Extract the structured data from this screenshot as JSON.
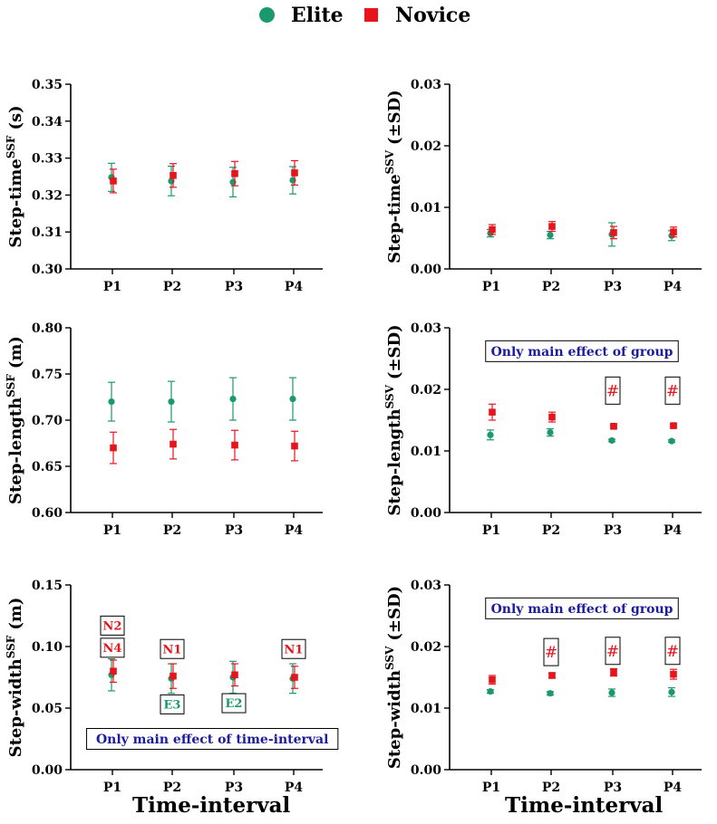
{
  "legend": {
    "elite_label": "Elite",
    "novice_label": "Novice",
    "elite_color": "#1a9a6c",
    "novice_color": "#e8141b"
  },
  "x_axis_title": "Time-interval",
  "chart_data": [
    {
      "type": "scatter",
      "ylabel_main": "Step-time",
      "ylabel_sup": "SSF",
      "ylabel_unit": "(s)",
      "categories": [
        "P1",
        "P2",
        "P3",
        "P4"
      ],
      "ylim": [
        0.3,
        0.35
      ],
      "yticks": [
        "0.30",
        "0.31",
        "0.32",
        "0.33",
        "0.34",
        "0.35"
      ],
      "series": [
        {
          "name": "Elite",
          "values": [
            0.3248,
            0.3238,
            0.3235,
            0.324
          ],
          "errors": [
            0.0038,
            0.004,
            0.004,
            0.0037
          ]
        },
        {
          "name": "Novice",
          "values": [
            0.3238,
            0.3253,
            0.3258,
            0.326
          ],
          "errors": [
            0.0032,
            0.0032,
            0.0033,
            0.0033
          ]
        }
      ],
      "annotations": []
    },
    {
      "type": "scatter",
      "ylabel_main": "Step-time",
      "ylabel_sup": "SSV",
      "ylabel_unit": "(±SD)",
      "categories": [
        "P1",
        "P2",
        "P3",
        "P4"
      ],
      "ylim": [
        0.0,
        0.03
      ],
      "yticks": [
        "0.00",
        "0.01",
        "0.02",
        "0.03"
      ],
      "series": [
        {
          "name": "Elite",
          "values": [
            0.0058,
            0.0055,
            0.0056,
            0.0054
          ],
          "errors": [
            0.0006,
            0.0006,
            0.0019,
            0.0008
          ]
        },
        {
          "name": "Novice",
          "values": [
            0.0064,
            0.0069,
            0.0059,
            0.006
          ],
          "errors": [
            0.0008,
            0.0008,
            0.001,
            0.0008
          ]
        }
      ],
      "annotations": []
    },
    {
      "type": "scatter",
      "ylabel_main": "Step-length",
      "ylabel_sup": "SSF",
      "ylabel_unit": "(m)",
      "categories": [
        "P1",
        "P2",
        "P3",
        "P4"
      ],
      "ylim": [
        0.6,
        0.8
      ],
      "yticks": [
        "0.60",
        "0.65",
        "0.70",
        "0.75",
        "0.80"
      ],
      "series": [
        {
          "name": "Elite",
          "values": [
            0.72,
            0.72,
            0.723,
            0.723
          ],
          "errors": [
            0.021,
            0.022,
            0.023,
            0.023
          ]
        },
        {
          "name": "Novice",
          "values": [
            0.67,
            0.674,
            0.673,
            0.672
          ],
          "errors": [
            0.017,
            0.016,
            0.016,
            0.016
          ]
        }
      ],
      "annotations": []
    },
    {
      "type": "scatter",
      "ylabel_main": "Step-length",
      "ylabel_sup": "SSV",
      "ylabel_unit": "(±SD)",
      "categories": [
        "P1",
        "P2",
        "P3",
        "P4"
      ],
      "ylim": [
        0.0,
        0.03
      ],
      "yticks": [
        "0.00",
        "0.01",
        "0.02",
        "0.03"
      ],
      "series": [
        {
          "name": "Elite",
          "values": [
            0.0126,
            0.013,
            0.0117,
            0.0116
          ],
          "errors": [
            0.0008,
            0.0006,
            0.0002,
            0.0002
          ]
        },
        {
          "name": "Novice",
          "values": [
            0.0163,
            0.0155,
            0.014,
            0.0141
          ],
          "errors": [
            0.0013,
            0.0008,
            0.0002,
            0.0002
          ]
        }
      ],
      "annotations": [
        {
          "text": "Only main effect of group",
          "color": "#1c1c9c",
          "kind": "wide",
          "cat": 1.5,
          "value": 0.0262
        },
        {
          "text": "#",
          "color": "#e8141b",
          "kind": "hash",
          "cat": 2,
          "value": 0.0198
        },
        {
          "text": "#",
          "color": "#e8141b",
          "kind": "hash",
          "cat": 3,
          "value": 0.0198
        }
      ]
    },
    {
      "type": "scatter",
      "ylabel_main": "Step-width",
      "ylabel_sup": "SSF",
      "ylabel_unit": "(m)",
      "categories": [
        "P1",
        "P2",
        "P3",
        "P4"
      ],
      "ylim": [
        0.0,
        0.15
      ],
      "yticks": [
        "0.00",
        "0.05",
        "0.10",
        "0.15"
      ],
      "series": [
        {
          "name": "Elite",
          "values": [
            0.077,
            0.074,
            0.075,
            0.074
          ],
          "errors": [
            0.013,
            0.012,
            0.013,
            0.012
          ]
        },
        {
          "name": "Novice",
          "values": [
            0.08,
            0.076,
            0.077,
            0.075
          ],
          "errors": [
            0.009,
            0.01,
            0.009,
            0.009
          ]
        }
      ],
      "annotations": [
        {
          "text": "N2",
          "color": "#e8141b",
          "kind": "box",
          "cat": 0,
          "value": 0.117
        },
        {
          "text": "N4",
          "color": "#e8141b",
          "kind": "box",
          "cat": 0,
          "value": 0.099
        },
        {
          "text": "N1",
          "color": "#e8141b",
          "kind": "box",
          "cat": 1,
          "value": 0.098
        },
        {
          "text": "N1",
          "color": "#e8141b",
          "kind": "box",
          "cat": 3,
          "value": 0.098
        },
        {
          "text": "E3",
          "color": "#1a9a6c",
          "kind": "box",
          "cat": 1,
          "value": 0.053
        },
        {
          "text": "E2",
          "color": "#1a9a6c",
          "kind": "box",
          "cat": 2,
          "value": 0.054
        },
        {
          "text": "Only main effect of time-interval",
          "color": "#1c1c9c",
          "kind": "wide",
          "cat": 1.65,
          "value": 0.025
        }
      ]
    },
    {
      "type": "scatter",
      "ylabel_main": "Step-width",
      "ylabel_sup": "SSV",
      "ylabel_unit": "(±SD)",
      "categories": [
        "P1",
        "P2",
        "P3",
        "P4"
      ],
      "ylim": [
        0.0,
        0.03
      ],
      "yticks": [
        "0.00",
        "0.01",
        "0.02",
        "0.03"
      ],
      "series": [
        {
          "name": "Elite",
          "values": [
            0.0127,
            0.0124,
            0.0125,
            0.0126
          ],
          "errors": [
            0.0003,
            0.0003,
            0.0006,
            0.0007
          ]
        },
        {
          "name": "Novice",
          "values": [
            0.0146,
            0.0153,
            0.0158,
            0.0155
          ],
          "errors": [
            0.0007,
            0.0004,
            0.0006,
            0.0008
          ]
        }
      ],
      "annotations": [
        {
          "text": "Only main effect of group",
          "color": "#1c1c9c",
          "kind": "wide",
          "cat": 1.5,
          "value": 0.0262
        },
        {
          "text": "#",
          "color": "#e8141b",
          "kind": "hash",
          "cat": 1,
          "value": 0.0191
        },
        {
          "text": "#",
          "color": "#e8141b",
          "kind": "hash",
          "cat": 2,
          "value": 0.0193
        },
        {
          "text": "#",
          "color": "#e8141b",
          "kind": "hash",
          "cat": 3,
          "value": 0.0193
        }
      ]
    }
  ]
}
